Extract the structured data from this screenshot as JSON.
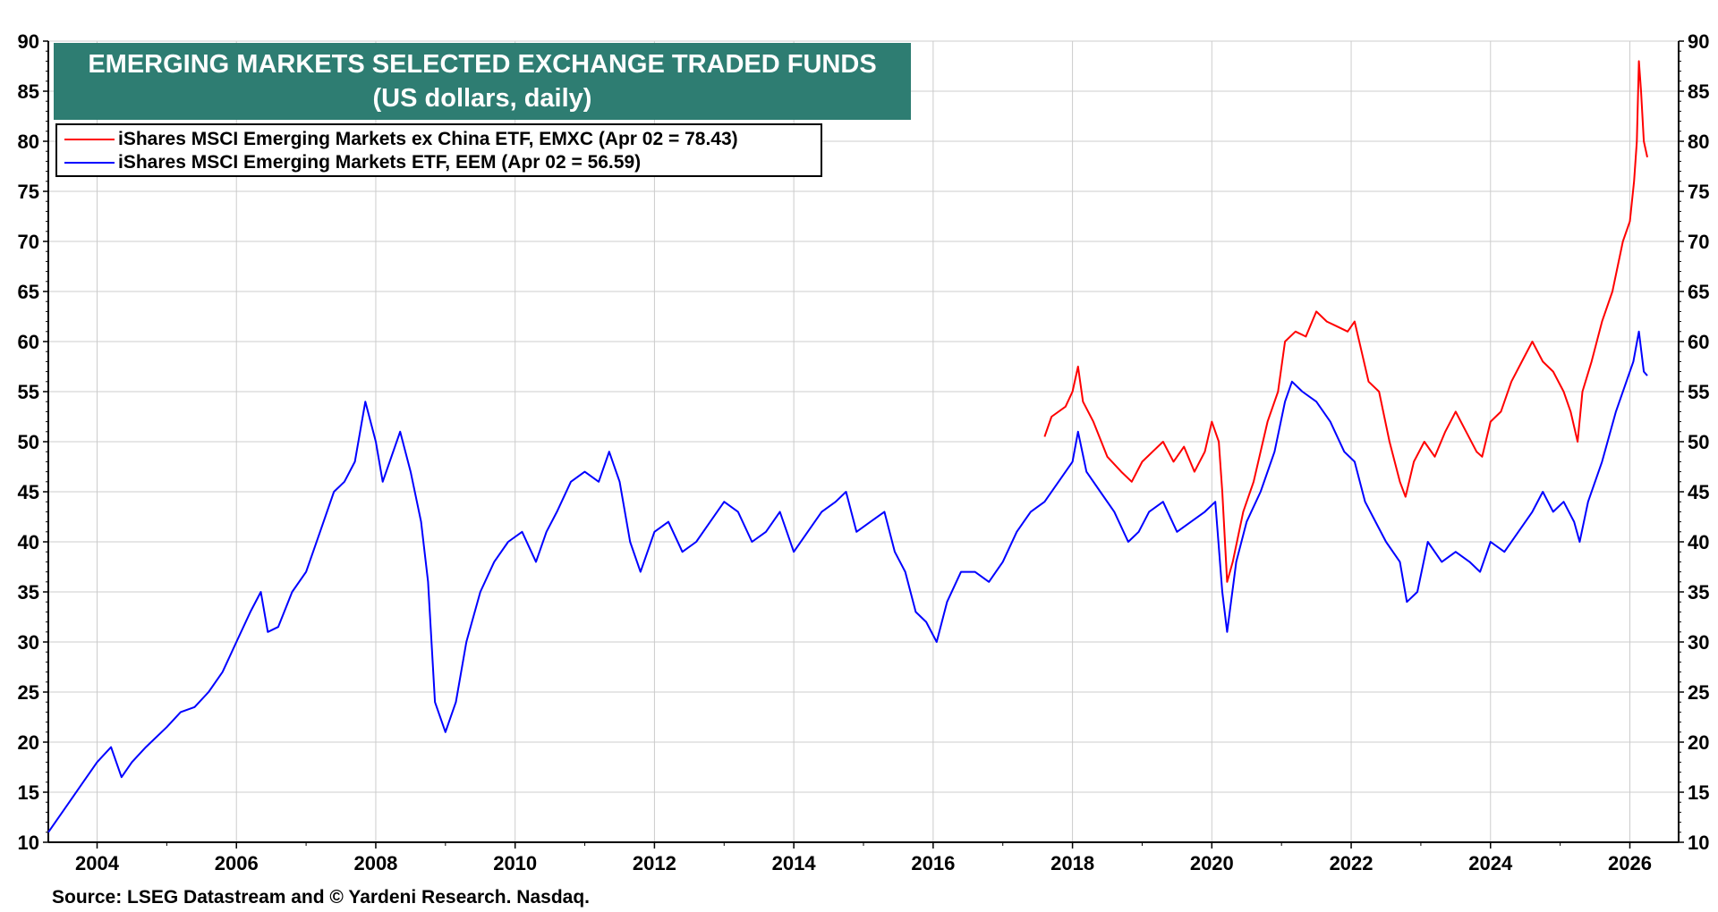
{
  "chart_data": {
    "type": "line",
    "title": "EMERGING MARKETS SELECTED EXCHANGE TRADED FUNDS",
    "subtitle": "(US dollars, daily)",
    "xlabel": "",
    "ylabel": "",
    "xlim": [
      2003.3,
      2026.7
    ],
    "ylim": [
      10,
      90
    ],
    "yticks": [
      "10",
      "15",
      "20",
      "25",
      "30",
      "35",
      "40",
      "45",
      "50",
      "55",
      "60",
      "65",
      "70",
      "75",
      "80",
      "85",
      "90"
    ],
    "xticks": [
      "2004",
      "2006",
      "2008",
      "2010",
      "2012",
      "2014",
      "2016",
      "2018",
      "2020",
      "2022",
      "2024",
      "2026"
    ],
    "grid": true,
    "legend_position": "top-left",
    "source": "Source: LSEG Datastream and © Yardeni Research. Nasdaq.",
    "series": [
      {
        "name": "iShares MSCI Emerging Markets ex China ETF, EMXC (Apr 02 = 78.43)",
        "color": "#ff0000",
        "x": [
          2017.6,
          2017.7,
          2017.9,
          2018.0,
          2018.08,
          2018.15,
          2018.3,
          2018.5,
          2018.7,
          2018.85,
          2019.0,
          2019.15,
          2019.3,
          2019.45,
          2019.6,
          2019.75,
          2019.9,
          2020.0,
          2020.1,
          2020.15,
          2020.22,
          2020.3,
          2020.45,
          2020.6,
          2020.8,
          2020.95,
          2021.05,
          2021.2,
          2021.35,
          2021.5,
          2021.65,
          2021.8,
          2021.95,
          2022.05,
          2022.15,
          2022.25,
          2022.4,
          2022.55,
          2022.7,
          2022.78,
          2022.9,
          2023.05,
          2023.2,
          2023.35,
          2023.5,
          2023.65,
          2023.8,
          2023.88,
          2024.0,
          2024.15,
          2024.3,
          2024.45,
          2024.6,
          2024.75,
          2024.9,
          2025.05,
          2025.15,
          2025.25,
          2025.32,
          2025.45,
          2025.6,
          2025.75,
          2025.9,
          2026.0,
          2026.06,
          2026.1,
          2026.13,
          2026.16,
          2026.2,
          2026.25
        ],
        "y": [
          50.5,
          52.5,
          53.5,
          55,
          57.5,
          54,
          52,
          48.5,
          47,
          46,
          48,
          49,
          50,
          48,
          49.5,
          47,
          49,
          52,
          50,
          45,
          36,
          38,
          43,
          46,
          52,
          55,
          60,
          61,
          60.5,
          63,
          62,
          61.5,
          61,
          62,
          59,
          56,
          55,
          50,
          46,
          44.5,
          48,
          50,
          48.5,
          51,
          53,
          51,
          49,
          48.5,
          52,
          53,
          56,
          58,
          60,
          58,
          57,
          55,
          53,
          50,
          55,
          58,
          62,
          65,
          70,
          72,
          76,
          80,
          88,
          85,
          80,
          78.4
        ]
      },
      {
        "name": "iShares MSCI Emerging Markets ETF, EEM (Apr 02 = 56.59)",
        "color": "#0000ff",
        "x": [
          2003.3,
          2003.6,
          2003.8,
          2004.0,
          2004.2,
          2004.35,
          2004.5,
          2004.7,
          2005.0,
          2005.2,
          2005.4,
          2005.6,
          2005.8,
          2006.0,
          2006.2,
          2006.35,
          2006.45,
          2006.6,
          2006.8,
          2007.0,
          2007.2,
          2007.4,
          2007.55,
          2007.7,
          2007.85,
          2008.0,
          2008.1,
          2008.2,
          2008.35,
          2008.5,
          2008.65,
          2008.75,
          2008.85,
          2009.0,
          2009.15,
          2009.3,
          2009.5,
          2009.7,
          2009.9,
          2010.1,
          2010.3,
          2010.45,
          2010.6,
          2010.8,
          2011.0,
          2011.2,
          2011.35,
          2011.5,
          2011.65,
          2011.8,
          2012.0,
          2012.2,
          2012.4,
          2012.6,
          2012.8,
          2013.0,
          2013.2,
          2013.4,
          2013.6,
          2013.8,
          2014.0,
          2014.2,
          2014.4,
          2014.6,
          2014.75,
          2014.9,
          2015.1,
          2015.3,
          2015.45,
          2015.6,
          2015.75,
          2015.9,
          2016.05,
          2016.2,
          2016.4,
          2016.6,
          2016.8,
          2017.0,
          2017.2,
          2017.4,
          2017.6,
          2017.8,
          2018.0,
          2018.08,
          2018.2,
          2018.4,
          2018.6,
          2018.8,
          2018.95,
          2019.1,
          2019.3,
          2019.5,
          2019.7,
          2019.9,
          2020.05,
          2020.15,
          2020.22,
          2020.35,
          2020.5,
          2020.7,
          2020.9,
          2021.05,
          2021.15,
          2021.3,
          2021.5,
          2021.7,
          2021.9,
          2022.05,
          2022.2,
          2022.35,
          2022.5,
          2022.7,
          2022.8,
          2022.95,
          2023.1,
          2023.3,
          2023.5,
          2023.7,
          2023.85,
          2024.0,
          2024.2,
          2024.4,
          2024.6,
          2024.75,
          2024.9,
          2025.05,
          2025.2,
          2025.28,
          2025.4,
          2025.6,
          2025.8,
          2025.95,
          2026.05,
          2026.13,
          2026.2,
          2026.25
        ],
        "y": [
          11,
          14,
          16,
          18,
          19.5,
          16.5,
          18,
          19.5,
          21.5,
          23,
          23.5,
          25,
          27,
          30,
          33,
          35,
          31,
          31.5,
          35,
          37,
          41,
          45,
          46,
          48,
          54,
          50,
          46,
          48,
          51,
          47,
          42,
          36,
          24,
          21,
          24,
          30,
          35,
          38,
          40,
          41,
          38,
          41,
          43,
          46,
          47,
          46,
          49,
          46,
          40,
          37,
          41,
          42,
          39,
          40,
          42,
          44,
          43,
          40,
          41,
          43,
          39,
          41,
          43,
          44,
          45,
          41,
          42,
          43,
          39,
          37,
          33,
          32,
          30,
          34,
          37,
          37,
          36,
          38,
          41,
          43,
          44,
          46,
          48,
          51,
          47,
          45,
          43,
          40,
          41,
          43,
          44,
          41,
          42,
          43,
          44,
          35,
          31,
          38,
          42,
          45,
          49,
          54,
          56,
          55,
          54,
          52,
          49,
          48,
          44,
          42,
          40,
          38,
          34,
          35,
          40,
          38,
          39,
          38,
          37,
          40,
          39,
          41,
          43,
          45,
          43,
          44,
          42,
          40,
          44,
          48,
          53,
          56,
          58,
          61,
          57,
          56.6
        ]
      }
    ]
  }
}
